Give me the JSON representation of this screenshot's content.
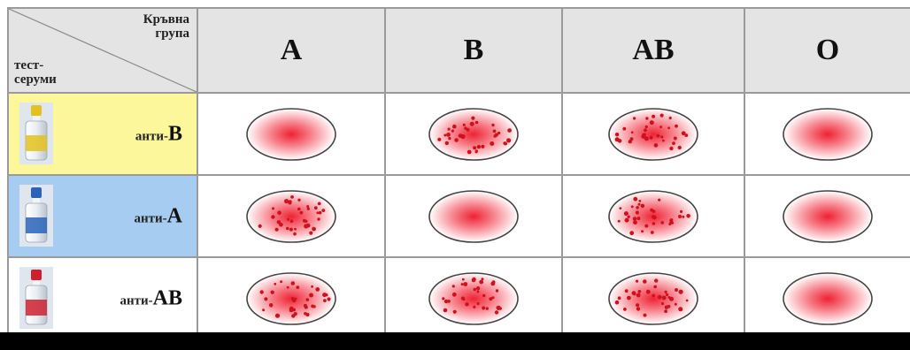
{
  "table": {
    "corner": {
      "top_lines": [
        "Кръвна",
        "група"
      ],
      "bottom_lines": [
        "тест-",
        "серуми"
      ]
    },
    "columns": [
      "A",
      "B",
      "AB",
      "O"
    ],
    "rows": [
      {
        "prefix": "анти-",
        "letter": "B",
        "label_bg": "#fbf79a",
        "bottle_color": "#e3c21d",
        "cells": [
          "no-agglutination",
          "agglutination",
          "agglutination",
          "no-agglutination"
        ]
      },
      {
        "prefix": "анти-",
        "letter": "A",
        "label_bg": "#a6ccf2",
        "bottle_color": "#2a63b8",
        "cells": [
          "agglutination",
          "no-agglutination",
          "agglutination",
          "no-agglutination"
        ]
      },
      {
        "prefix": "анти-",
        "letter": "AB",
        "label_bg": "#ffffff",
        "bottle_color": "#cf2030",
        "cells": [
          "agglutination",
          "agglutination",
          "agglutination",
          "no-agglutination"
        ]
      }
    ]
  },
  "colors": {
    "header_bg": "#e4e4e4",
    "grid": "#9a9a9a",
    "blood": "#ee2233",
    "dots": "#d0101c"
  }
}
